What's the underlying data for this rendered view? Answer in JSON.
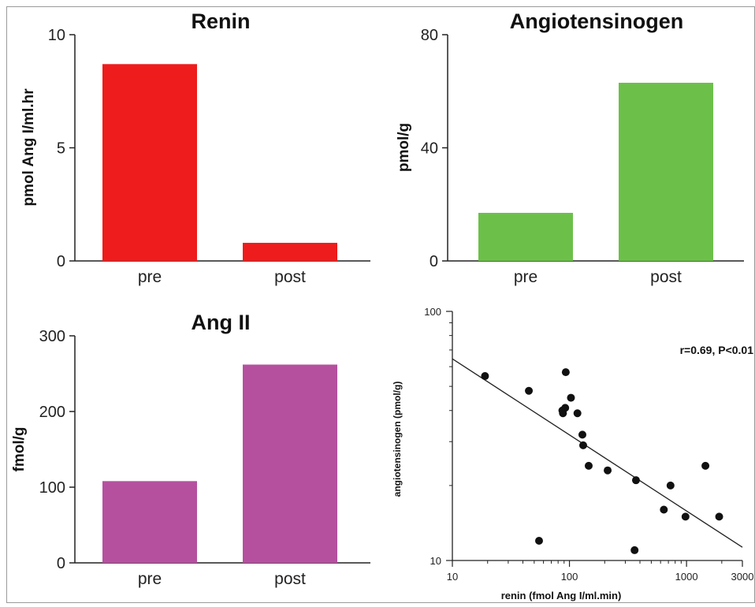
{
  "chart_data": [
    {
      "type": "bar",
      "title": "Renin",
      "ylabel": "pmol Ang I/ml.hr",
      "categories": [
        "pre",
        "post"
      ],
      "values": [
        8.7,
        0.8
      ],
      "ylim": [
        0,
        10
      ],
      "yticks": [
        "0",
        "5",
        "10"
      ],
      "color": "#ee1c1c",
      "grid": false
    },
    {
      "type": "bar",
      "title": "Angiotensinogen",
      "ylabel": "pmol/g",
      "categories": [
        "pre",
        "post"
      ],
      "values": [
        17,
        63
      ],
      "ylim": [
        0,
        80
      ],
      "yticks": [
        "0",
        "40",
        "80"
      ],
      "color": "#6cc04a",
      "grid": false
    },
    {
      "type": "bar",
      "title": "Ang II",
      "ylabel": "fmol/g",
      "categories": [
        "pre",
        "post"
      ],
      "values": [
        108,
        262
      ],
      "ylim": [
        0,
        300
      ],
      "yticks": [
        "0",
        "100",
        "200",
        "300"
      ],
      "color": "#b5509f",
      "grid": false
    },
    {
      "type": "scatter",
      "title": "",
      "xlabel": "renin (fmol Ang I/ml.min)",
      "ylabel": "angiotensinogen (pmol/g)",
      "xscale": "log",
      "yscale": "log",
      "xlim": [
        10,
        3000
      ],
      "ylim": [
        10,
        100
      ],
      "xticks": [
        "10",
        "100",
        "1000",
        "3000"
      ],
      "yticks": [
        "10",
        "100"
      ],
      "annotation": "r=0.69, P<0.01",
      "x": [
        19,
        45,
        55,
        87,
        88,
        92,
        93,
        103,
        117,
        129,
        131,
        146,
        212,
        360,
        370,
        640,
        730,
        980,
        1450,
        1900
      ],
      "y": [
        55,
        48,
        12,
        40,
        39,
        41,
        57,
        45,
        39,
        32,
        29,
        24,
        23,
        11,
        21,
        16,
        20,
        15,
        24,
        15
      ],
      "regression": {
        "x": [
          10,
          3000
        ],
        "y": [
          64.5,
          11.3
        ]
      },
      "grid": false
    }
  ]
}
